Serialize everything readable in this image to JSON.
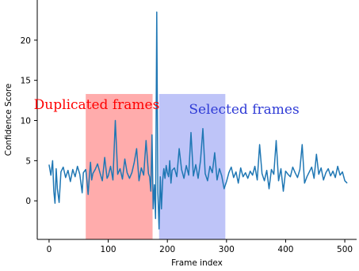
{
  "chart_data": {
    "type": "line",
    "title": "",
    "xlabel": "Frame index",
    "ylabel": "Confidence Score",
    "xlim": [
      -20,
      520
    ],
    "ylim": [
      -4.8,
      25
    ],
    "x_ticks": [
      0,
      100,
      200,
      300,
      400,
      500
    ],
    "y_ticks": [
      0,
      5,
      10,
      15,
      20
    ],
    "x_tick_labels": [
      "0",
      "100",
      "200",
      "300",
      "400",
      "500"
    ],
    "y_tick_labels": [
      "0",
      "5",
      "10",
      "15",
      "20"
    ],
    "grid": false,
    "legend": "none",
    "series": [
      {
        "color": "#1f77b4",
        "x": [
          0,
          3,
          6,
          8,
          10,
          12,
          14,
          17,
          20,
          24,
          28,
          32,
          36,
          40,
          44,
          48,
          52,
          56,
          58,
          62,
          64,
          66,
          68,
          70,
          72,
          74,
          78,
          82,
          86,
          90,
          94,
          98,
          100,
          104,
          108,
          112,
          116,
          120,
          124,
          128,
          132,
          136,
          140,
          144,
          148,
          152,
          156,
          160,
          164,
          168,
          170,
          172,
          174,
          176,
          178,
          180,
          182,
          184,
          186,
          188,
          190,
          192,
          194,
          196,
          198,
          200,
          202,
          204,
          206,
          208,
          212,
          216,
          220,
          224,
          228,
          232,
          236,
          240,
          244,
          248,
          252,
          256,
          260,
          264,
          268,
          272,
          276,
          280,
          284,
          288,
          292,
          296,
          300,
          304,
          308,
          312,
          316,
          320,
          324,
          328,
          332,
          336,
          340,
          344,
          348,
          352,
          356,
          360,
          364,
          368,
          372,
          376,
          380,
          384,
          388,
          392,
          396,
          400,
          404,
          408,
          412,
          416,
          420,
          424,
          428,
          432,
          436,
          440,
          444,
          448,
          452,
          456,
          460,
          464,
          468,
          472,
          476,
          480,
          484,
          488,
          492,
          496,
          500,
          504
        ],
        "y": [
          4.5,
          3.2,
          5.0,
          1.2,
          -0.3,
          4.0,
          1.5,
          -0.2,
          3.6,
          4.2,
          2.9,
          3.8,
          2.4,
          3.9,
          3.0,
          4.3,
          3.3,
          1.0,
          3.5,
          3.9,
          2.5,
          0.8,
          3.0,
          4.8,
          2.6,
          3.4,
          3.9,
          4.6,
          3.5,
          2.5,
          5.4,
          2.8,
          3.1,
          4.3,
          2.6,
          10.0,
          3.3,
          4.0,
          2.7,
          5.2,
          3.5,
          2.8,
          3.5,
          4.8,
          6.5,
          2.5,
          4.1,
          3.2,
          7.5,
          3.4,
          3.0,
          1.2,
          8.2,
          -1.0,
          2.0,
          -2.2,
          23.5,
          1.0,
          -3.5,
          3.0,
          -1.0,
          2.5,
          4.0,
          2.8,
          4.4,
          3.5,
          3.0,
          5.0,
          2.2,
          3.8,
          4.1,
          3.0,
          6.5,
          3.9,
          2.8,
          4.4,
          3.2,
          8.5,
          3.1,
          4.5,
          2.8,
          5.0,
          9.0,
          3.4,
          2.5,
          4.3,
          3.5,
          6.0,
          2.6,
          4.0,
          3.1,
          1.5,
          2.4,
          3.5,
          4.2,
          2.9,
          3.6,
          2.2,
          4.1,
          3.0,
          3.5,
          2.8,
          3.7,
          3.2,
          4.3,
          2.6,
          7.0,
          3.4,
          2.5,
          3.8,
          1.5,
          3.9,
          3.3,
          7.5,
          2.5,
          4.0,
          1.2,
          3.7,
          3.3,
          3.0,
          4.2,
          3.5,
          2.9,
          3.9,
          7.0,
          2.2,
          3.0,
          3.6,
          4.2,
          2.8,
          5.8,
          3.3,
          4.1,
          2.6,
          3.5,
          4.0,
          3.1,
          3.7,
          2.9,
          4.3,
          3.2,
          3.6,
          2.5,
          2.2
        ]
      }
    ],
    "regions": [
      {
        "x_start": 62,
        "x_end": 175,
        "color": "#ff8080",
        "label": "Duplicated frames",
        "label_color": "#ff0000"
      },
      {
        "x_start": 186,
        "x_end": 298,
        "color": "#9ba5f5",
        "label": "Selected frames",
        "label_color": "#2f3bd6"
      }
    ]
  }
}
